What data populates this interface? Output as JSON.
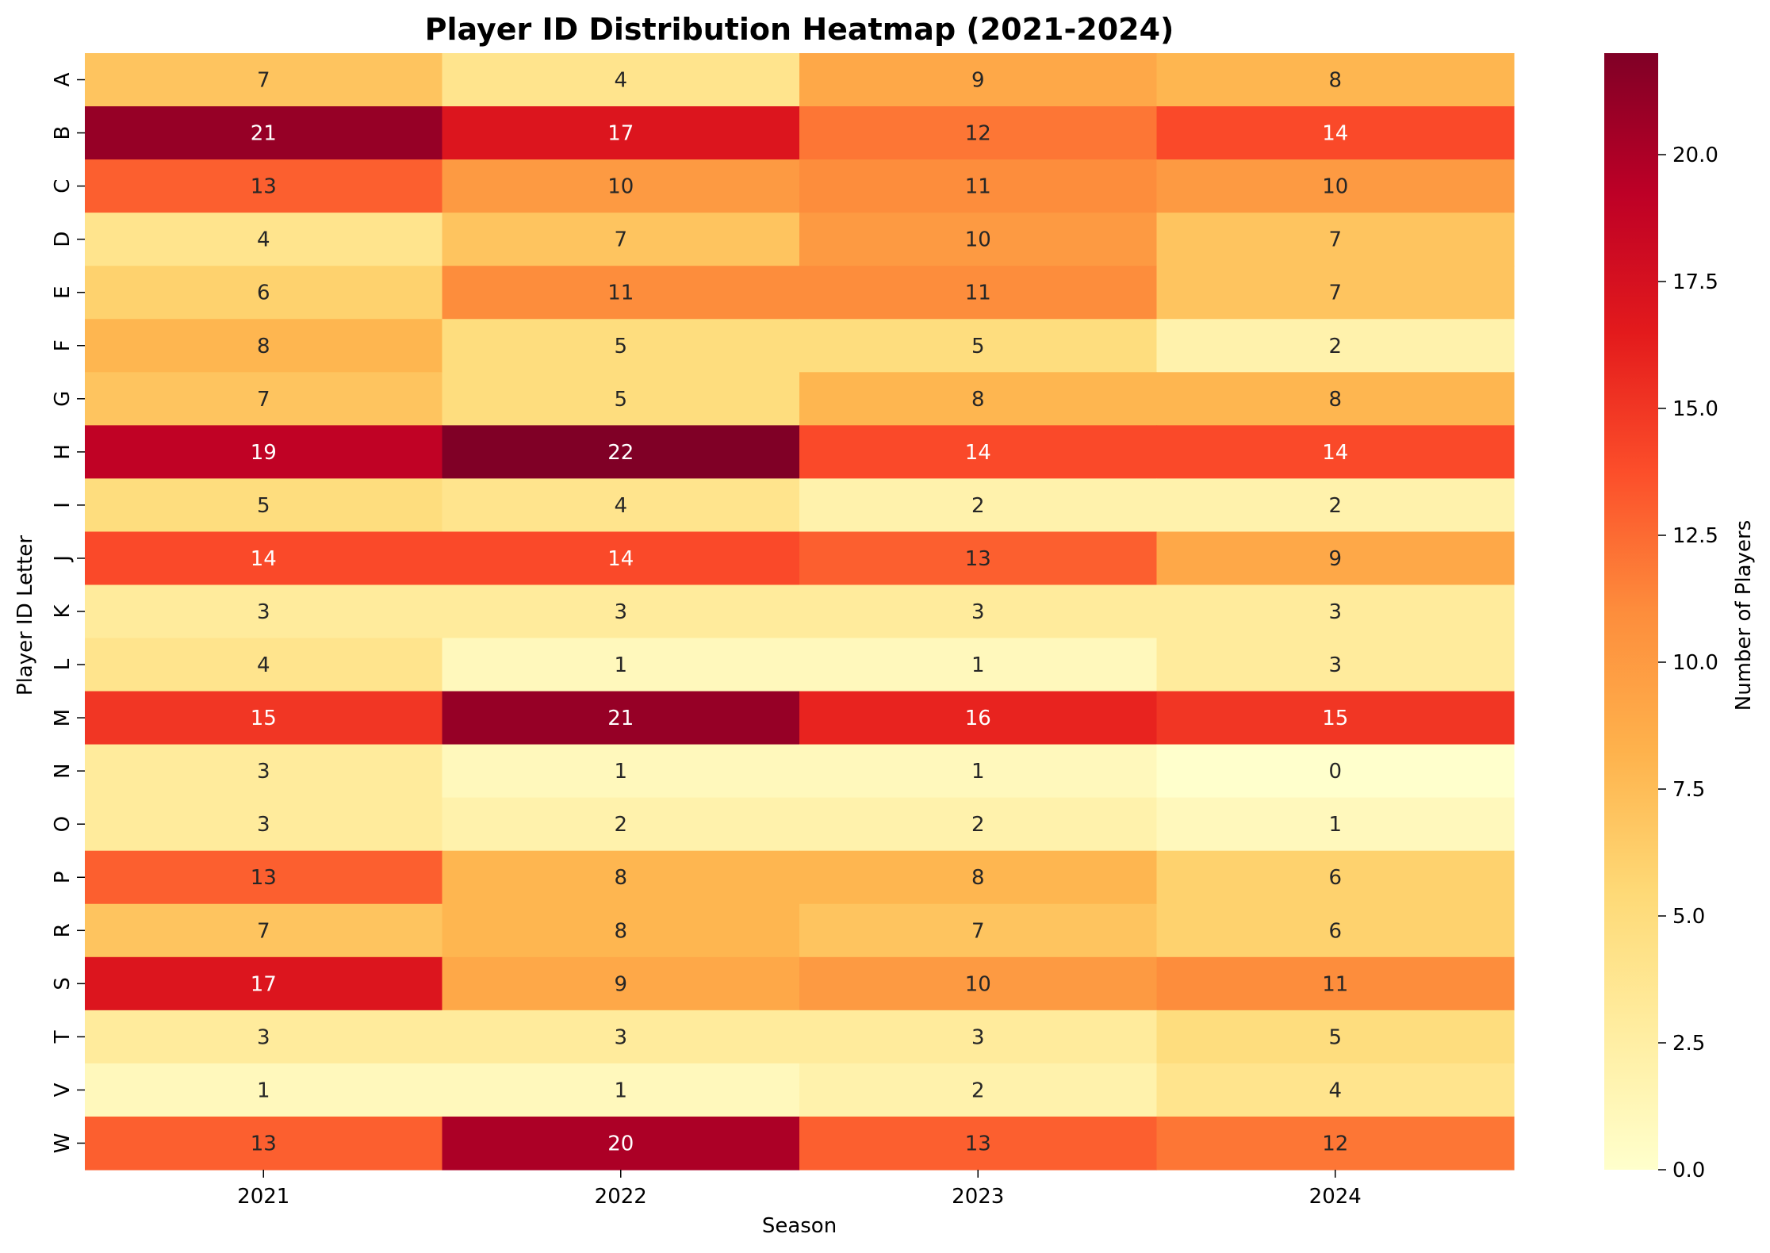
{
  "chart_data": {
    "type": "heatmap",
    "title": "Player ID Distribution Heatmap (2021-2024)",
    "xlabel": "Season",
    "ylabel": "Player ID Letter",
    "x_categories": [
      "2021",
      "2022",
      "2023",
      "2024"
    ],
    "y_categories": [
      "A",
      "B",
      "C",
      "D",
      "E",
      "F",
      "G",
      "H",
      "I",
      "J",
      "K",
      "L",
      "M",
      "N",
      "O",
      "P",
      "R",
      "S",
      "T",
      "V",
      "W"
    ],
    "values": [
      [
        7,
        4,
        9,
        8
      ],
      [
        21,
        17,
        12,
        14
      ],
      [
        13,
        10,
        11,
        10
      ],
      [
        4,
        7,
        10,
        7
      ],
      [
        6,
        11,
        11,
        7
      ],
      [
        8,
        5,
        5,
        2
      ],
      [
        7,
        5,
        8,
        8
      ],
      [
        19,
        22,
        14,
        14
      ],
      [
        5,
        4,
        2,
        2
      ],
      [
        14,
        14,
        13,
        9
      ],
      [
        3,
        3,
        3,
        3
      ],
      [
        4,
        1,
        1,
        3
      ],
      [
        15,
        21,
        16,
        15
      ],
      [
        3,
        1,
        1,
        0
      ],
      [
        3,
        2,
        2,
        1
      ],
      [
        13,
        8,
        8,
        6
      ],
      [
        7,
        8,
        7,
        6
      ],
      [
        17,
        9,
        10,
        11
      ],
      [
        3,
        3,
        3,
        5
      ],
      [
        1,
        1,
        2,
        4
      ],
      [
        13,
        20,
        13,
        12
      ]
    ],
    "colorbar": {
      "label": "Number of Players",
      "range": [
        0,
        22
      ],
      "ticks": [
        "0.0",
        "2.5",
        "5.0",
        "7.5",
        "10.0",
        "12.5",
        "15.0",
        "17.5",
        "20.0"
      ],
      "colormap": "YlOrRd"
    }
  }
}
